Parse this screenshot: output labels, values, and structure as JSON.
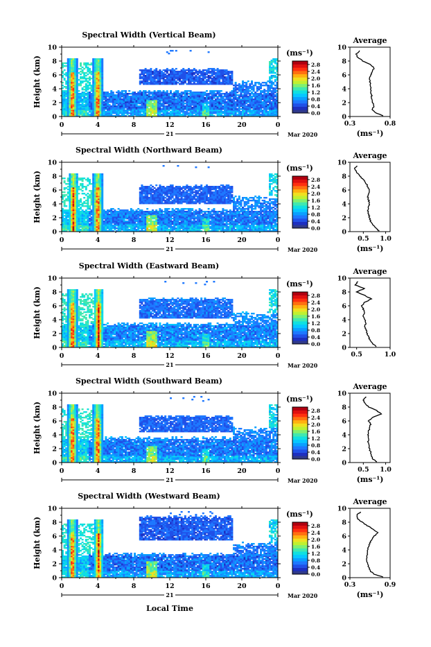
{
  "xlabel": "Local Time",
  "colorbar": {
    "unit": "(ms⁻¹)",
    "ticks": [
      "0.0",
      "0.4",
      "0.8",
      "1.2",
      "1.6",
      "2.0",
      "2.4",
      "2.8"
    ],
    "range": [
      0.0,
      3.0
    ],
    "colors": [
      "#303a8a",
      "#1d2fc0",
      "#2050e8",
      "#1e78ff",
      "#0aa0ff",
      "#06c8ff",
      "#10e0e0",
      "#40e8b0",
      "#80f070",
      "#c0f030",
      "#f0e020",
      "#ffb010",
      "#ff7010",
      "#ff3010",
      "#e01010",
      "#b00010"
    ]
  },
  "chart_data": [
    {
      "type": "heatmap",
      "title": "Spectral Width (Vertical Beam)",
      "ylabel": "Height (km)",
      "xlabel": "",
      "x_ticks": [
        "0",
        "4",
        "8",
        "12",
        "16",
        "20",
        "0"
      ],
      "y_ticks": [
        "0",
        "2",
        "4",
        "6",
        "8",
        "10"
      ],
      "xlim": [
        0,
        24
      ],
      "ylim": [
        0,
        10
      ],
      "date_day": "21",
      "date_month_year": "Mar 2020",
      "colorbar_label": "(ms⁻¹)",
      "colorbar_range": [
        0.0,
        3.0
      ],
      "features": {
        "upper_top_km": 6.8,
        "upper_bottom_km": 4.6,
        "lower_top_km": 3.6,
        "strong_times_h": [
          1.2,
          4.0
        ],
        "baseline": 0.6
      },
      "profile": {
        "title": "Average",
        "xlabel": "(ms⁻¹)",
        "x_ticks": [
          "0.3",
          "0.8"
        ],
        "xlim": [
          0.3,
          0.8
        ],
        "y_ticks": [
          "0",
          "2",
          "4",
          "6",
          "8",
          "10"
        ],
        "height_km": [
          0.1,
          0.5,
          1.0,
          1.5,
          2.0,
          2.5,
          3.0,
          3.5,
          4.0,
          4.5,
          5.0,
          5.5,
          6.0,
          6.5,
          7.0,
          7.5,
          8.0,
          8.5,
          9.0,
          9.5
        ],
        "values": [
          0.72,
          0.62,
          0.58,
          0.6,
          0.58,
          0.57,
          0.57,
          0.56,
          0.56,
          0.56,
          0.55,
          0.54,
          0.56,
          0.58,
          0.6,
          0.55,
          0.46,
          0.4,
          0.38,
          0.42
        ]
      }
    },
    {
      "type": "heatmap",
      "title": "Spectral Width (Northward Beam)",
      "ylabel": "Height (km)",
      "xlabel": "",
      "x_ticks": [
        "0",
        "4",
        "8",
        "12",
        "16",
        "20",
        "0"
      ],
      "y_ticks": [
        "0",
        "2",
        "4",
        "6",
        "8",
        "10"
      ],
      "xlim": [
        0,
        24
      ],
      "ylim": [
        0,
        10
      ],
      "date_day": "21",
      "date_month_year": "Mar 2020",
      "colorbar_label": "(ms⁻¹)",
      "colorbar_range": [
        0.0,
        3.0
      ],
      "features": {
        "upper_top_km": 6.6,
        "upper_bottom_km": 4.0,
        "lower_top_km": 3.2,
        "strong_times_h": [
          1.3,
          4.0
        ],
        "baseline": 0.65
      },
      "profile": {
        "title": "Average",
        "xlabel": "(ms⁻¹)",
        "x_ticks": [
          "0.5",
          "1.0"
        ],
        "xlim": [
          0.2,
          1.1
        ],
        "y_ticks": [
          "0",
          "2",
          "4",
          "6",
          "8",
          "10"
        ],
        "height_km": [
          0.1,
          0.5,
          1.0,
          1.5,
          2.0,
          2.5,
          3.0,
          3.5,
          4.0,
          4.5,
          5.0,
          5.5,
          6.0,
          6.5,
          7.0,
          7.5,
          8.0,
          8.5,
          9.0,
          9.5
        ],
        "values": [
          0.85,
          0.78,
          0.7,
          0.66,
          0.64,
          0.62,
          0.6,
          0.62,
          0.64,
          0.62,
          0.6,
          0.62,
          0.64,
          0.6,
          0.56,
          0.5,
          0.42,
          0.36,
          0.3,
          0.36
        ]
      }
    },
    {
      "type": "heatmap",
      "title": "Spectral Width (Eastward Beam)",
      "ylabel": "Height (km)",
      "xlabel": "",
      "x_ticks": [
        "0",
        "4",
        "8",
        "12",
        "16",
        "20",
        "0"
      ],
      "y_ticks": [
        "0",
        "2",
        "4",
        "6",
        "8",
        "10"
      ],
      "xlim": [
        0,
        24
      ],
      "ylim": [
        0,
        10
      ],
      "date_day": "21",
      "date_month_year": "Mar 2020",
      "colorbar_label": "(ms⁻¹)",
      "colorbar_range": [
        0.0,
        3.0
      ],
      "features": {
        "upper_top_km": 7.0,
        "upper_bottom_km": 4.2,
        "lower_top_km": 3.4,
        "strong_times_h": [
          1.2,
          4.1
        ],
        "baseline": 0.7
      },
      "profile": {
        "title": "Average",
        "xlabel": "",
        "x_ticks": [
          "0.5",
          "1.0"
        ],
        "xlim": [
          0.4,
          1.0
        ],
        "y_ticks": [
          "0",
          "2",
          "4",
          "6",
          "8",
          "10"
        ],
        "height_km": [
          0.1,
          0.5,
          1.0,
          1.5,
          2.0,
          2.5,
          3.0,
          3.5,
          4.0,
          4.5,
          5.0,
          5.5,
          6.0,
          6.5,
          7.0,
          7.5,
          8.0,
          8.5,
          9.0,
          9.5
        ],
        "values": [
          0.8,
          0.74,
          0.7,
          0.68,
          0.66,
          0.64,
          0.62,
          0.64,
          0.62,
          0.6,
          0.62,
          0.6,
          0.58,
          0.62,
          0.72,
          0.62,
          0.5,
          0.62,
          0.48,
          0.52
        ]
      }
    },
    {
      "type": "heatmap",
      "title": "Spectral Width (Southward Beam)",
      "ylabel": "Height (km)",
      "xlabel": "",
      "x_ticks": [
        "0",
        "4",
        "8",
        "12",
        "16",
        "20",
        "0"
      ],
      "y_ticks": [
        "0",
        "2",
        "4",
        "6",
        "8",
        "10"
      ],
      "xlim": [
        0,
        24
      ],
      "ylim": [
        0,
        10
      ],
      "date_day": "21",
      "date_month_year": "Mar 2020",
      "colorbar_label": "(ms⁻¹)",
      "colorbar_range": [
        0.0,
        3.0
      ],
      "features": {
        "upper_top_km": 6.7,
        "upper_bottom_km": 4.4,
        "lower_top_km": 3.5,
        "strong_times_h": [
          1.2,
          4.0
        ],
        "baseline": 0.65
      },
      "profile": {
        "title": "Average",
        "xlabel": "(ms⁻¹)",
        "x_ticks": [
          "0.5",
          "1.0"
        ],
        "xlim": [
          0.2,
          1.1
        ],
        "y_ticks": [
          "0",
          "2",
          "4",
          "6",
          "8",
          "10"
        ],
        "height_km": [
          0.1,
          0.5,
          1.0,
          1.5,
          2.0,
          2.5,
          3.0,
          3.5,
          4.0,
          4.5,
          5.0,
          5.5,
          6.0,
          6.5,
          7.0,
          7.5,
          8.0,
          8.5,
          9.0,
          9.5
        ],
        "values": [
          0.8,
          0.72,
          0.68,
          0.66,
          0.64,
          0.62,
          0.6,
          0.62,
          0.6,
          0.62,
          0.64,
          0.66,
          0.62,
          0.7,
          0.9,
          0.8,
          0.62,
          0.55,
          0.5,
          0.56
        ]
      }
    },
    {
      "type": "heatmap",
      "title": "Spectral Width (Westward Beam)",
      "ylabel": "Height (km)",
      "xlabel": "Local Time",
      "x_ticks": [
        "0",
        "4",
        "8",
        "12",
        "16",
        "20",
        "0"
      ],
      "y_ticks": [
        "0",
        "2",
        "4",
        "6",
        "8",
        "10"
      ],
      "xlim": [
        0,
        24
      ],
      "ylim": [
        0,
        10
      ],
      "date_day": "21",
      "date_month_year": "Mar 2020",
      "colorbar_label": "(ms⁻¹)",
      "colorbar_range": [
        0.0,
        3.0
      ],
      "features": {
        "upper_top_km": 8.8,
        "upper_bottom_km": 5.4,
        "lower_top_km": 3.4,
        "strong_times_h": [
          1.2,
          4.1
        ],
        "baseline": 0.6
      },
      "profile": {
        "title": "Average",
        "xlabel": "(ms⁻¹)",
        "x_ticks": [
          "0.3",
          "0.9"
        ],
        "xlim": [
          0.3,
          0.9
        ],
        "y_ticks": [
          "0",
          "2",
          "4",
          "6",
          "8",
          "10"
        ],
        "height_km": [
          0.1,
          0.5,
          1.0,
          1.5,
          2.0,
          2.5,
          3.0,
          3.5,
          4.0,
          4.5,
          5.0,
          5.5,
          6.0,
          6.5,
          7.0,
          7.5,
          8.0,
          8.5,
          9.0,
          9.5
        ],
        "values": [
          0.8,
          0.66,
          0.6,
          0.58,
          0.56,
          0.55,
          0.56,
          0.56,
          0.56,
          0.58,
          0.6,
          0.62,
          0.66,
          0.72,
          0.64,
          0.56,
          0.48,
          0.42,
          0.4,
          0.46
        ]
      }
    }
  ]
}
